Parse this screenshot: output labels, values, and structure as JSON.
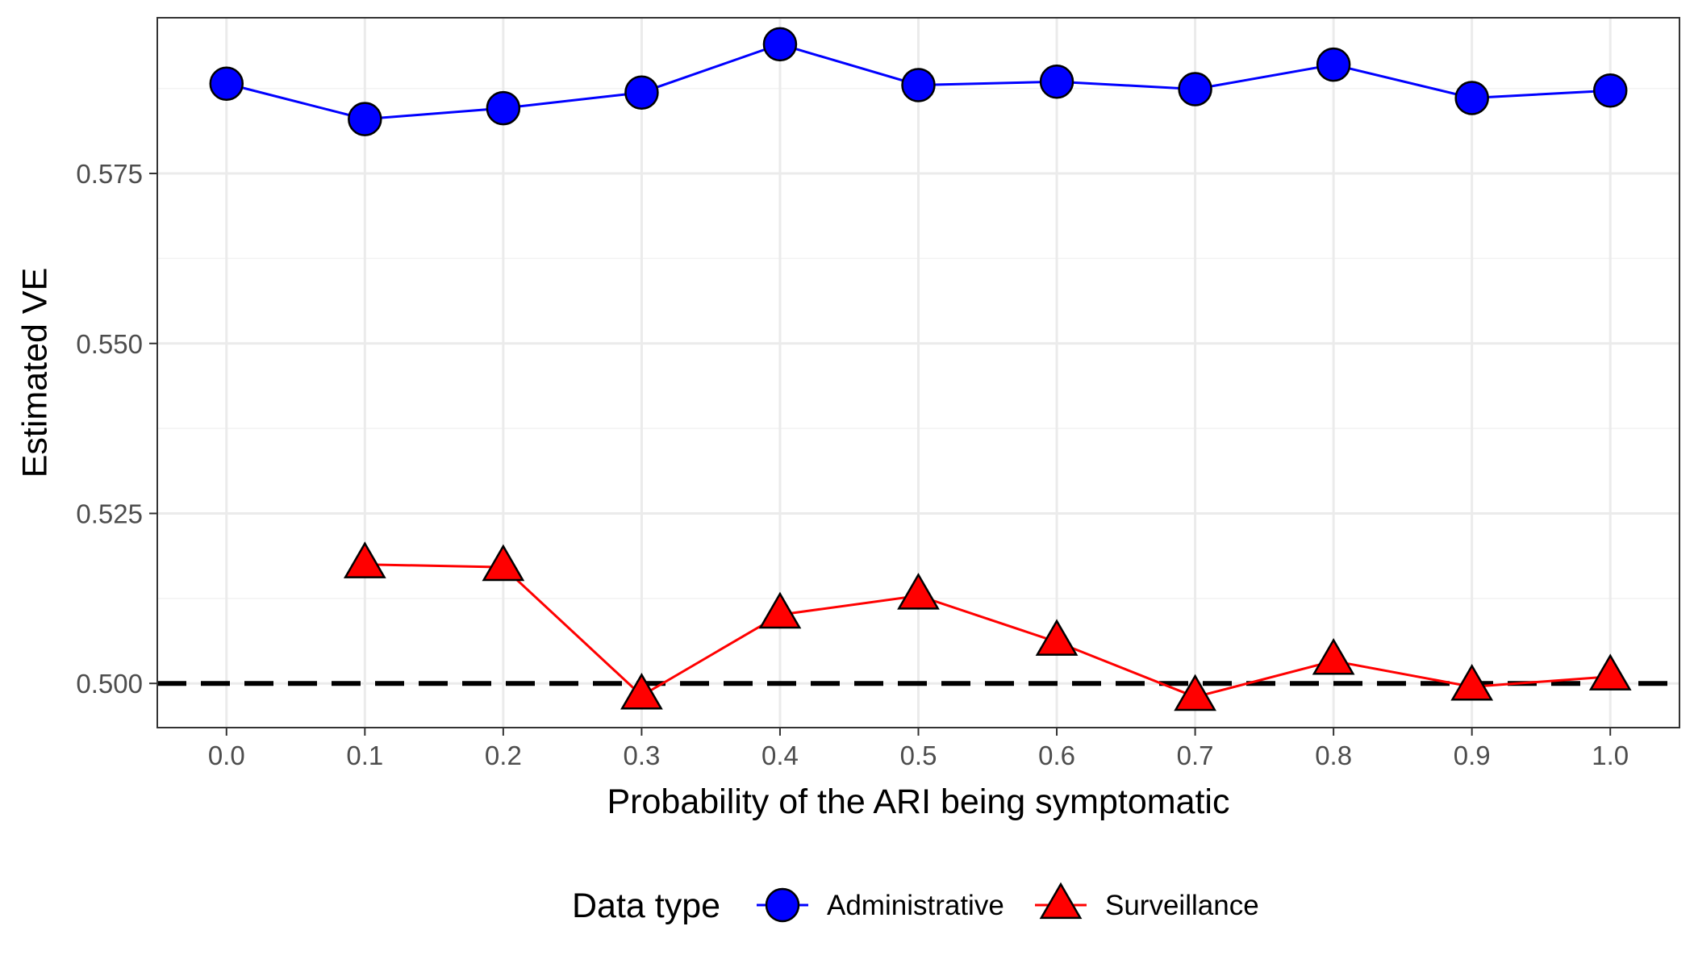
{
  "chart_data": {
    "type": "line",
    "xlabel": "Probability of the ARI being symptomatic",
    "ylabel": "Estimated VE",
    "x_ticks": [
      "0.0",
      "0.1",
      "0.2",
      "0.3",
      "0.4",
      "0.5",
      "0.6",
      "0.7",
      "0.8",
      "0.9",
      "1.0"
    ],
    "y_ticks": [
      "0.500",
      "0.525",
      "0.550",
      "0.575"
    ],
    "xlim": [
      -0.05,
      1.05
    ],
    "ylim": [
      0.4935,
      0.5979
    ],
    "grid": true,
    "legend": {
      "title": "Data type",
      "position": "bottom"
    },
    "reference_line": {
      "y": 0.5,
      "style": "dashed",
      "color": "#000000"
    },
    "series": [
      {
        "name": "Administrative",
        "marker": "circle",
        "color": "#0000ff",
        "x": [
          0.0,
          0.1,
          0.2,
          0.3,
          0.4,
          0.5,
          0.6,
          0.7,
          0.8,
          0.9,
          1.0
        ],
        "values": [
          0.5882,
          0.583,
          0.5846,
          0.5869,
          0.594,
          0.588,
          0.5885,
          0.5874,
          0.591,
          0.5861,
          0.5872
        ]
      },
      {
        "name": "Surveillance",
        "marker": "triangle",
        "color": "#ff0000",
        "x": [
          0.1,
          0.2,
          0.3,
          0.4,
          0.5,
          0.6,
          0.7,
          0.8,
          0.9,
          1.0
        ],
        "values": [
          0.5175,
          0.5171,
          0.4982,
          0.5101,
          0.5129,
          0.5061,
          0.498,
          0.5033,
          0.4995,
          0.501
        ]
      }
    ]
  }
}
